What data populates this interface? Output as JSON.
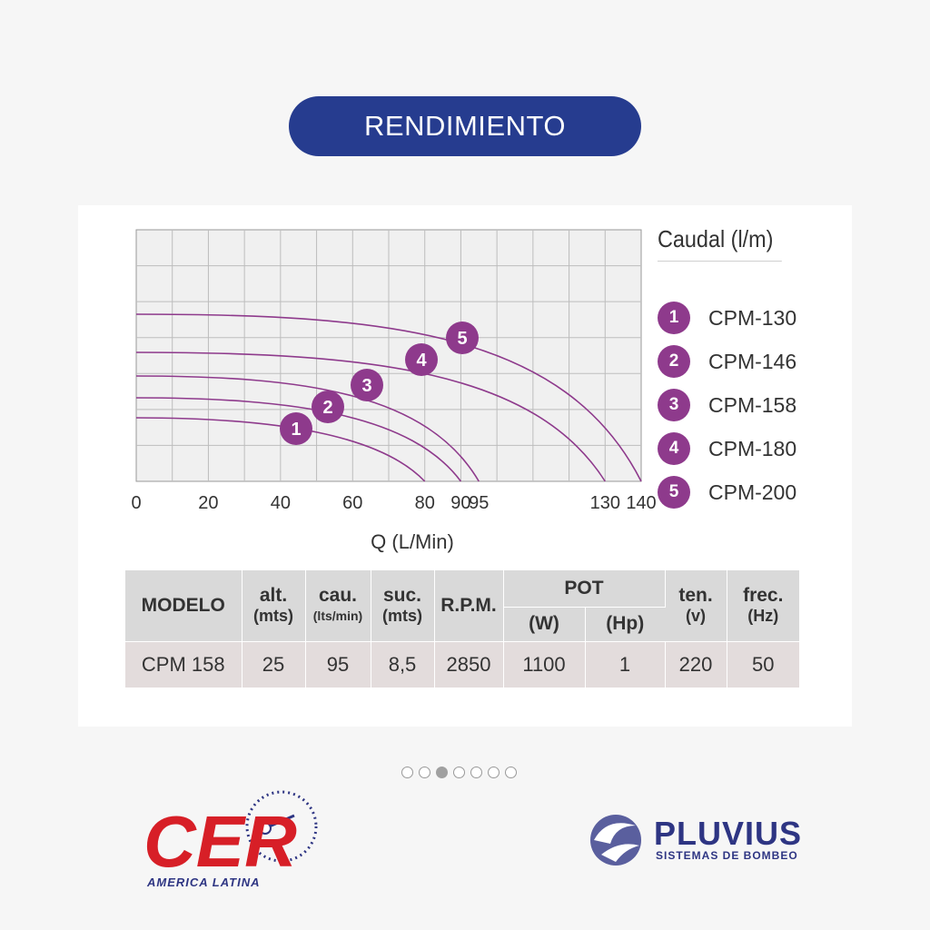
{
  "title": "RENDIMIENTO",
  "chart_data": {
    "type": "line",
    "xlabel": "Q (L/Min)",
    "x_ticks": [
      0,
      20,
      40,
      60,
      80,
      90,
      95,
      130,
      140
    ],
    "xlim": [
      0,
      140
    ],
    "grid": true,
    "legend_title": "Caudal (l/m)",
    "legend_placement": "right",
    "series": [
      {
        "name": "CPM-130",
        "marker": "1",
        "x_end": 80
      },
      {
        "name": "CPM-146",
        "marker": "2",
        "x_end": 90
      },
      {
        "name": "CPM-158",
        "marker": "3",
        "x_end": 95
      },
      {
        "name": "CPM-180",
        "marker": "4",
        "x_end": 130
      },
      {
        "name": "CPM-200",
        "marker": "5",
        "x_end": 140
      }
    ],
    "color": "#8e3a8c"
  },
  "table": {
    "headers": {
      "modelo": "MODELO",
      "alt": "alt.",
      "alt_unit": "(mts)",
      "cau": "cau.",
      "cau_unit": "(lts/min)",
      "suc": "suc.",
      "suc_unit": "(mts)",
      "rpm": "R.P.M.",
      "pot": "POT",
      "pot_w": "(W)",
      "pot_hp": "(Hp)",
      "ten": "ten.",
      "ten_unit": "(v)",
      "frec": "frec.",
      "frec_unit": "(Hz)"
    },
    "row": {
      "modelo": "CPM 158",
      "alt": "25",
      "cau": "95",
      "suc": "8,5",
      "rpm": "2850",
      "pot_w": "1100",
      "pot_hp": "1",
      "ten": "220",
      "frec": "50"
    }
  },
  "carousel": {
    "count": 7,
    "active_index": 2
  },
  "logos": {
    "cer_text": "CER",
    "cer_sub": "AMERICA LATINA",
    "pluvius_name": "PLUVIUS",
    "pluvius_sub": "SISTEMAS DE BOMBEO"
  },
  "colors": {
    "title_bg": "#263c8f",
    "curve": "#8e3a8c",
    "cer_red": "#d71f27",
    "brand_blue": "#2e3583"
  }
}
